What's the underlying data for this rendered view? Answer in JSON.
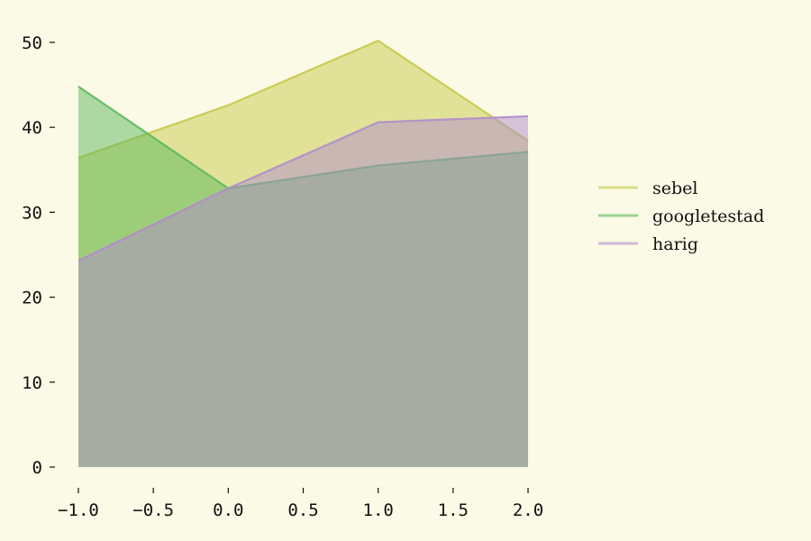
{
  "chart_data": {
    "type": "area",
    "x": [
      -1.0,
      0.0,
      1.0,
      2.0
    ],
    "series": [
      {
        "name": "sebel",
        "values": [
          36.4,
          42.6,
          50.2,
          38.4
        ],
        "color": "#c7c94a"
      },
      {
        "name": "googletestad",
        "values": [
          44.8,
          32.8,
          35.5,
          37.1
        ],
        "color": "#5cb85c"
      },
      {
        "name": "harig",
        "values": [
          24.3,
          32.8,
          40.6,
          41.3
        ],
        "color": "#b08ccc"
      }
    ],
    "x_ticks": [
      -1.0,
      -0.5,
      0.0,
      0.5,
      1.0,
      1.5,
      2.0
    ],
    "x_tick_labels": [
      "−1.0",
      "−0.5",
      "0.0",
      "0.5",
      "1.0",
      "1.5",
      "2.0"
    ],
    "y_ticks": [
      0,
      10,
      20,
      30,
      40,
      50
    ],
    "y_tick_labels": [
      "0",
      "10",
      "20",
      "30",
      "40",
      "50"
    ],
    "xlim": [
      -1.0,
      2.0
    ],
    "ylim": [
      0,
      50
    ],
    "grid": false,
    "legend_position": "right",
    "background_color": "#fafae6",
    "title": "",
    "xlabel": "",
    "ylabel": ""
  }
}
